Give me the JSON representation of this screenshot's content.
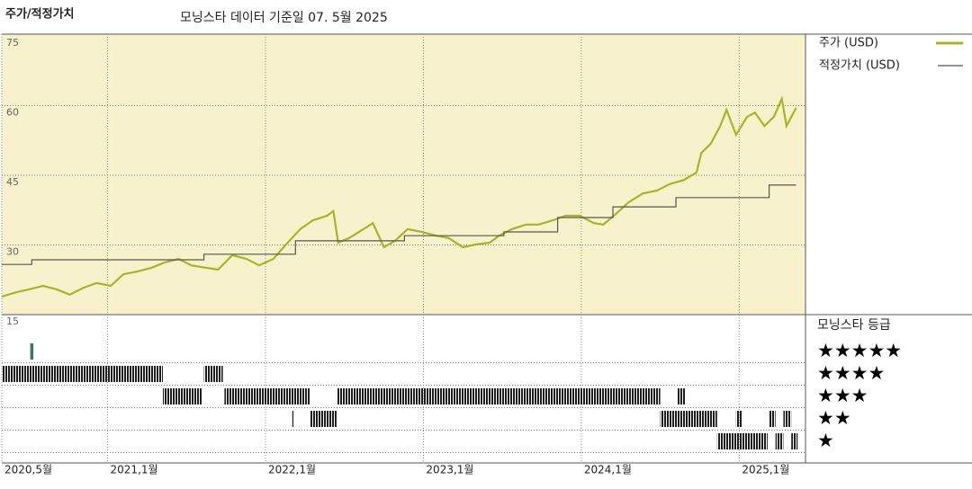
{
  "chart_data": {
    "type": "line",
    "title": "주가/적정가치",
    "subtitle": "모닝스타 데이터 기준일 07. 5월 2025",
    "xlim": [
      2020.33,
      2025.42
    ],
    "xticks": [
      {
        "value": 2020.33,
        "label": "2020,5월"
      },
      {
        "value": 2021.0,
        "label": "2021,1월"
      },
      {
        "value": 2022.0,
        "label": "2022,1월"
      },
      {
        "value": 2023.0,
        "label": "2023,1월"
      },
      {
        "value": 2024.0,
        "label": "2024,1월"
      },
      {
        "value": 2025.0,
        "label": "2025,1월"
      }
    ],
    "ylim": [
      15,
      75
    ],
    "yticks": [
      15,
      30,
      45,
      60,
      75
    ],
    "grid": true,
    "series": [
      {
        "name": "주가 (USD)",
        "color": "#a9b32c",
        "x": [
          2020.33,
          2020.42,
          2020.5,
          2020.59,
          2020.68,
          2020.76,
          2020.85,
          2020.93,
          2021.02,
          2021.1,
          2021.19,
          2021.28,
          2021.36,
          2021.45,
          2021.53,
          2021.62,
          2021.7,
          2021.79,
          2021.88,
          2021.96,
          2022.05,
          2022.13,
          2022.22,
          2022.3,
          2022.39,
          2022.43,
          2022.46,
          2022.53,
          2022.62,
          2022.68,
          2022.75,
          2022.82,
          2022.9,
          2022.99,
          2023.08,
          2023.16,
          2023.25,
          2023.33,
          2023.42,
          2023.48,
          2023.56,
          2023.65,
          2023.73,
          2023.82,
          2023.9,
          2023.99,
          2024.08,
          2024.14,
          2024.22,
          2024.3,
          2024.39,
          2024.48,
          2024.56,
          2024.65,
          2024.73,
          2024.76,
          2024.82,
          2024.88,
          2024.92,
          2024.98,
          2025.05,
          2025.1,
          2025.16,
          2025.22,
          2025.27,
          2025.3,
          2025.36
        ],
        "values": [
          18.9,
          19.8,
          20.4,
          21.2,
          20.4,
          19.3,
          20.8,
          21.8,
          21.2,
          23.7,
          24.3,
          25.1,
          26.2,
          27.0,
          25.6,
          25.1,
          24.7,
          27.8,
          27.0,
          25.6,
          27.0,
          30.1,
          33.4,
          35.3,
          36.3,
          37.3,
          30.5,
          31.5,
          33.4,
          34.7,
          29.5,
          30.9,
          33.4,
          32.8,
          32.0,
          31.5,
          29.5,
          30.1,
          30.5,
          32.0,
          33.4,
          34.4,
          34.4,
          35.3,
          36.3,
          36.3,
          34.7,
          34.4,
          36.7,
          39.2,
          41.1,
          41.7,
          43.1,
          44.0,
          45.6,
          49.8,
          51.8,
          55.6,
          59.1,
          53.7,
          57.6,
          58.5,
          55.6,
          57.6,
          61.5,
          55.6,
          59.5
        ]
      },
      {
        "name": "적정가치 (USD)",
        "color": "#555555",
        "x": [
          2020.33,
          2020.52,
          2020.52,
          2021.61,
          2021.61,
          2022.19,
          2022.19,
          2022.88,
          2022.88,
          2023.51,
          2023.51,
          2023.85,
          2023.85,
          2024.2,
          2024.2,
          2024.6,
          2024.6,
          2025.19,
          2025.19,
          2025.36
        ],
        "values": [
          25.8,
          25.8,
          26.8,
          26.8,
          28.0,
          28.0,
          30.9,
          30.9,
          32.0,
          32.0,
          32.8,
          32.8,
          35.9,
          35.9,
          38.2,
          38.2,
          40.2,
          40.2,
          42.9,
          42.9
        ]
      }
    ],
    "rating_title": "모닝스타 등급",
    "rating_labels": [
      "★★★★★",
      "★★★★",
      "★★★",
      "★★",
      "★"
    ],
    "rating_periods": [
      {
        "rating": 5,
        "from": 2020.51,
        "to": 2020.53
      },
      {
        "rating": 4,
        "from": 2020.33,
        "to": 2021.35
      },
      {
        "rating": 4,
        "from": 2021.61,
        "to": 2021.73
      },
      {
        "rating": 3,
        "from": 2021.35,
        "to": 2021.6
      },
      {
        "rating": 3,
        "from": 2021.74,
        "to": 2022.28
      },
      {
        "rating": 3,
        "from": 2022.45,
        "to": 2024.5
      },
      {
        "rating": 3,
        "from": 2024.61,
        "to": 2024.66
      },
      {
        "rating": 2,
        "from": 2022.17,
        "to": 2022.18
      },
      {
        "rating": 2,
        "from": 2022.28,
        "to": 2022.45
      },
      {
        "rating": 2,
        "from": 2024.5,
        "to": 2024.86
      },
      {
        "rating": 2,
        "from": 2024.98,
        "to": 2025.02
      },
      {
        "rating": 2,
        "from": 2025.19,
        "to": 2025.23
      },
      {
        "rating": 2,
        "from": 2025.28,
        "to": 2025.33
      },
      {
        "rating": 1,
        "from": 2024.86,
        "to": 2025.18
      },
      {
        "rating": 1,
        "from": 2025.23,
        "to": 2025.28
      },
      {
        "rating": 1,
        "from": 2025.33,
        "to": 2025.37
      }
    ]
  }
}
